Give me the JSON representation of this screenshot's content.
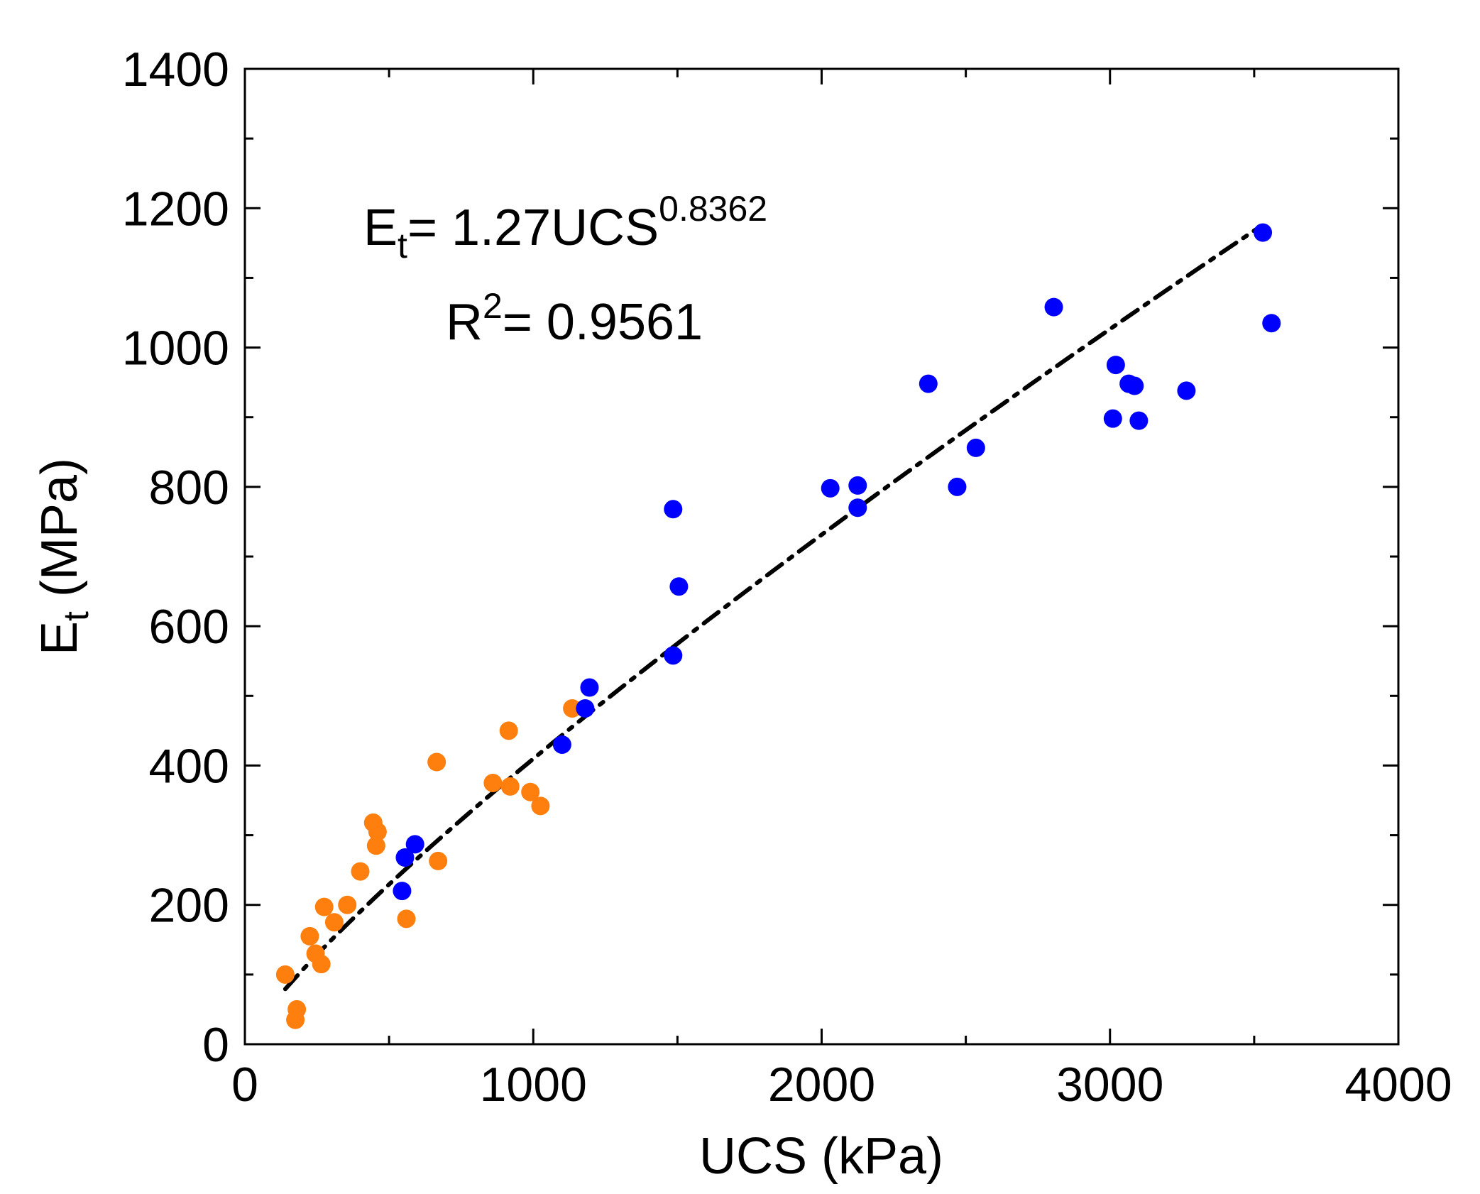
{
  "chart_data": {
    "type": "scatter",
    "xlabel": "UCS (kPa)",
    "ylabel": {
      "main": "E",
      "sub": "t",
      "rest": " (MPa)"
    },
    "xlim": [
      0,
      4000
    ],
    "ylim": [
      0,
      1400
    ],
    "xticks": [
      0,
      1000,
      2000,
      3000,
      4000
    ],
    "yticks": [
      0,
      200,
      400,
      600,
      800,
      1000,
      1200,
      1400
    ],
    "xtick_labels": [
      "0",
      "1000",
      "2000",
      "3000",
      "4000"
    ],
    "ytick_labels": [
      "0",
      "200",
      "400",
      "600",
      "800",
      "1000",
      "1200",
      "1400"
    ],
    "grid": false,
    "annotations": {
      "equation": {
        "lhs": "E",
        "lhs_sub": "t",
        "rhs": "= 1.27UCS",
        "exponent": "0.8362"
      },
      "r2": {
        "base": "R",
        "sup": "2",
        "rest": "= 0.9561"
      }
    },
    "fit": {
      "name": "power-fit",
      "coefficient": 1.27,
      "exponent": 0.8362,
      "x_range": [
        140,
        3510
      ],
      "color": "#000000",
      "style": "dash-dot"
    },
    "series": [
      {
        "name": "orange",
        "color": "#ff7f0e",
        "points": [
          [
            140,
            100
          ],
          [
            180,
            50
          ],
          [
            175,
            35
          ],
          [
            225,
            155
          ],
          [
            245,
            130
          ],
          [
            265,
            115
          ],
          [
            275,
            197
          ],
          [
            310,
            175
          ],
          [
            355,
            200
          ],
          [
            400,
            248
          ],
          [
            445,
            318
          ],
          [
            460,
            305
          ],
          [
            455,
            285
          ],
          [
            560,
            180
          ],
          [
            665,
            405
          ],
          [
            670,
            263
          ],
          [
            860,
            375
          ],
          [
            915,
            450
          ],
          [
            920,
            370
          ],
          [
            990,
            362
          ],
          [
            1025,
            342
          ],
          [
            1135,
            482
          ]
        ]
      },
      {
        "name": "blue",
        "color": "#0000ff",
        "points": [
          [
            545,
            220
          ],
          [
            555,
            268
          ],
          [
            590,
            287
          ],
          [
            1100,
            430
          ],
          [
            1180,
            482
          ],
          [
            1195,
            512
          ],
          [
            1485,
            558
          ],
          [
            1485,
            768
          ],
          [
            1505,
            657
          ],
          [
            2030,
            798
          ],
          [
            2125,
            770
          ],
          [
            2125,
            802
          ],
          [
            2370,
            948
          ],
          [
            2470,
            800
          ],
          [
            2535,
            856
          ],
          [
            2805,
            1058
          ],
          [
            3010,
            898
          ],
          [
            3020,
            975
          ],
          [
            3065,
            948
          ],
          [
            3085,
            945
          ],
          [
            3100,
            895
          ],
          [
            3265,
            938
          ],
          [
            3530,
            1165
          ],
          [
            3560,
            1035
          ]
        ]
      }
    ]
  }
}
